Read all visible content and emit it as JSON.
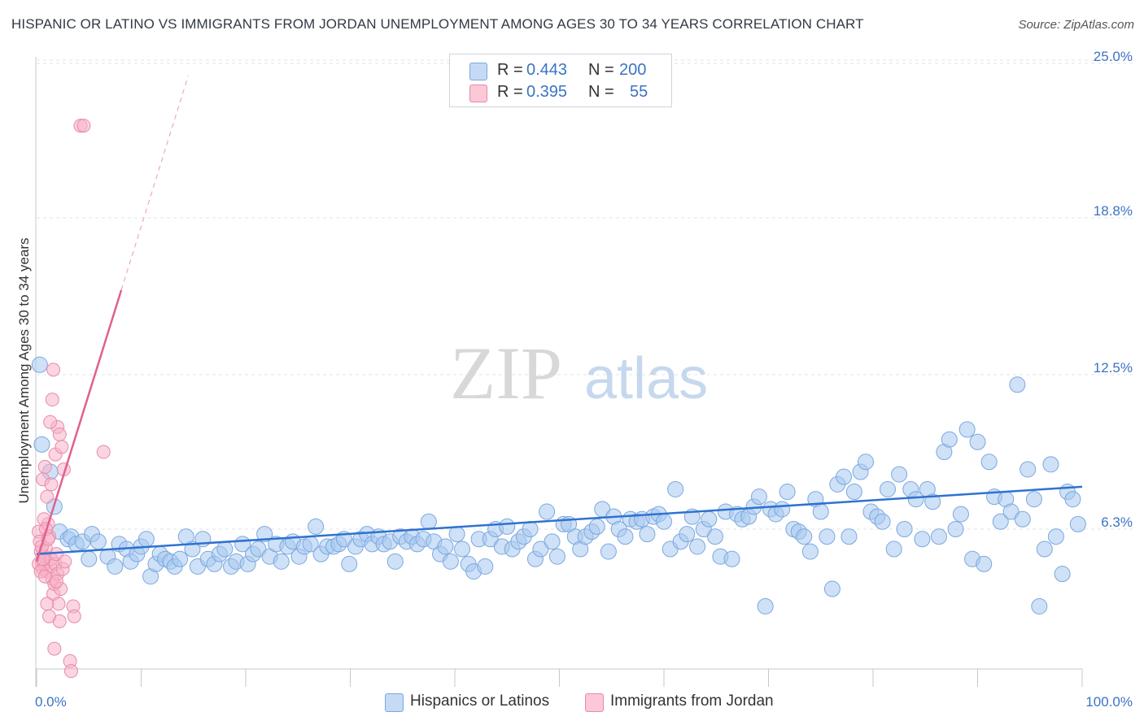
{
  "title": "HISPANIC OR LATINO VS IMMIGRANTS FROM JORDAN UNEMPLOYMENT AMONG AGES 30 TO 34 YEARS CORRELATION CHART",
  "source": "Source: ZipAtlas.com",
  "watermark": {
    "zip": "ZIP",
    "atlas": "atlas"
  },
  "legend_top": {
    "rows": [
      {
        "r_label": "R = ",
        "r_value": "0.443",
        "n_label": "N = ",
        "n_value": "200",
        "color": "#a8c8f0"
      },
      {
        "r_label": "R = ",
        "r_value": "0.395",
        "n_label": "N = ",
        "n_value": "55",
        "color": "#f7b3c8"
      }
    ]
  },
  "chart_data": {
    "type": "scatter",
    "title": "HISPANIC OR LATINO VS IMMIGRANTS FROM JORDAN UNEMPLOYMENT AMONG AGES 30 TO 34 YEARS CORRELATION CHART",
    "xlabel": "",
    "ylabel": "Unemployment Among Ages 30 to 34 years",
    "xlim": [
      0,
      100
    ],
    "ylim": [
      0,
      25.6
    ],
    "x_tick_labels": [
      "0.0%",
      "100.0%"
    ],
    "y_ticks": [
      6.3,
      12.5,
      18.8,
      25.0
    ],
    "y_tick_labels": [
      "6.3%",
      "12.5%",
      "18.8%",
      "25.0%"
    ],
    "grid": "dashed horizontal",
    "series": [
      {
        "name": "Hispanics or Latinos",
        "color": "#a8c8f0",
        "stroke": "#7aa8de",
        "line_color": "#2f72d0",
        "trend": {
          "x0": 0,
          "y0": 5.3,
          "x1": 100,
          "y1": 8.0
        },
        "points": [
          [
            0.3,
            12.9
          ],
          [
            0.5,
            9.7
          ],
          [
            1.3,
            8.6
          ],
          [
            1.7,
            7.2
          ],
          [
            2.2,
            6.2
          ],
          [
            3.0,
            5.9
          ],
          [
            3.3,
            6.0
          ],
          [
            3.8,
            5.7
          ],
          [
            4.4,
            5.8
          ],
          [
            5.0,
            5.1
          ],
          [
            5.3,
            6.1
          ],
          [
            5.9,
            5.8
          ],
          [
            6.8,
            5.2
          ],
          [
            7.5,
            4.8
          ],
          [
            7.9,
            5.7
          ],
          [
            8.6,
            5.5
          ],
          [
            9.0,
            5.0
          ],
          [
            9.6,
            5.3
          ],
          [
            10.0,
            5.6
          ],
          [
            10.5,
            5.9
          ],
          [
            10.9,
            4.4
          ],
          [
            11.4,
            4.9
          ],
          [
            11.8,
            5.3
          ],
          [
            12.3,
            5.1
          ],
          [
            12.8,
            5.0
          ],
          [
            13.2,
            4.8
          ],
          [
            13.7,
            5.1
          ],
          [
            14.3,
            6.0
          ],
          [
            14.9,
            5.5
          ],
          [
            15.4,
            4.8
          ],
          [
            15.9,
            5.9
          ],
          [
            16.4,
            5.1
          ],
          [
            17.0,
            4.9
          ],
          [
            17.5,
            5.3
          ],
          [
            18.0,
            5.5
          ],
          [
            18.6,
            4.8
          ],
          [
            19.1,
            5.0
          ],
          [
            19.7,
            5.7
          ],
          [
            20.2,
            4.9
          ],
          [
            20.7,
            5.3
          ],
          [
            21.2,
            5.5
          ],
          [
            21.8,
            6.1
          ],
          [
            22.3,
            5.2
          ],
          [
            22.9,
            5.7
          ],
          [
            23.4,
            5.0
          ],
          [
            24.0,
            5.6
          ],
          [
            24.5,
            5.8
          ],
          [
            25.1,
            5.2
          ],
          [
            25.6,
            5.6
          ],
          [
            26.2,
            5.7
          ],
          [
            26.7,
            6.4
          ],
          [
            27.2,
            5.3
          ],
          [
            27.8,
            5.6
          ],
          [
            28.4,
            5.6
          ],
          [
            28.9,
            5.7
          ],
          [
            29.4,
            5.9
          ],
          [
            29.9,
            4.9
          ],
          [
            30.5,
            5.6
          ],
          [
            31.0,
            5.9
          ],
          [
            31.6,
            6.1
          ],
          [
            32.1,
            5.7
          ],
          [
            32.7,
            6.0
          ],
          [
            33.2,
            5.7
          ],
          [
            33.8,
            5.8
          ],
          [
            34.3,
            5.0
          ],
          [
            34.8,
            6.0
          ],
          [
            35.4,
            5.8
          ],
          [
            35.9,
            6.0
          ],
          [
            36.4,
            5.7
          ],
          [
            37.0,
            5.9
          ],
          [
            37.5,
            6.6
          ],
          [
            38.0,
            5.8
          ],
          [
            38.6,
            5.3
          ],
          [
            39.1,
            5.6
          ],
          [
            39.6,
            5.0
          ],
          [
            40.2,
            6.1
          ],
          [
            40.7,
            5.5
          ],
          [
            41.3,
            4.9
          ],
          [
            41.8,
            4.6
          ],
          [
            42.3,
            5.9
          ],
          [
            42.9,
            4.8
          ],
          [
            43.4,
            5.9
          ],
          [
            43.9,
            6.3
          ],
          [
            44.5,
            5.6
          ],
          [
            45.0,
            6.4
          ],
          [
            45.5,
            5.5
          ],
          [
            46.1,
            5.8
          ],
          [
            46.6,
            6.0
          ],
          [
            47.2,
            6.3
          ],
          [
            47.7,
            5.1
          ],
          [
            48.2,
            5.5
          ],
          [
            48.8,
            7.0
          ],
          [
            49.3,
            5.8
          ],
          [
            49.8,
            5.2
          ],
          [
            50.4,
            6.5
          ],
          [
            50.9,
            6.5
          ],
          [
            51.5,
            6.0
          ],
          [
            52.0,
            5.5
          ],
          [
            52.5,
            6.0
          ],
          [
            53.1,
            6.2
          ],
          [
            53.6,
            6.4
          ],
          [
            54.1,
            7.1
          ],
          [
            54.7,
            5.4
          ],
          [
            55.2,
            6.8
          ],
          [
            55.7,
            6.3
          ],
          [
            56.3,
            6.0
          ],
          [
            56.8,
            6.7
          ],
          [
            57.4,
            6.6
          ],
          [
            57.9,
            6.7
          ],
          [
            58.4,
            6.1
          ],
          [
            59.0,
            6.8
          ],
          [
            59.5,
            6.9
          ],
          [
            60.0,
            6.6
          ],
          [
            60.6,
            5.5
          ],
          [
            61.1,
            7.9
          ],
          [
            61.6,
            5.8
          ],
          [
            62.2,
            6.1
          ],
          [
            62.7,
            6.8
          ],
          [
            63.2,
            5.6
          ],
          [
            63.8,
            6.3
          ],
          [
            64.3,
            6.7
          ],
          [
            64.9,
            6.0
          ],
          [
            65.4,
            5.2
          ],
          [
            65.9,
            7.0
          ],
          [
            66.5,
            5.1
          ],
          [
            67.0,
            6.9
          ],
          [
            67.5,
            6.7
          ],
          [
            68.1,
            6.8
          ],
          [
            68.6,
            7.2
          ],
          [
            69.1,
            7.6
          ],
          [
            69.7,
            3.2
          ],
          [
            70.2,
            7.1
          ],
          [
            70.7,
            6.9
          ],
          [
            71.3,
            7.1
          ],
          [
            71.8,
            7.8
          ],
          [
            72.4,
            6.3
          ],
          [
            72.9,
            6.2
          ],
          [
            73.4,
            6.0
          ],
          [
            74.0,
            5.4
          ],
          [
            74.5,
            7.5
          ],
          [
            75.0,
            7.0
          ],
          [
            75.6,
            6.0
          ],
          [
            76.1,
            3.9
          ],
          [
            76.6,
            8.1
          ],
          [
            77.2,
            8.4
          ],
          [
            77.7,
            6.0
          ],
          [
            78.2,
            7.8
          ],
          [
            78.8,
            8.6
          ],
          [
            79.3,
            9.0
          ],
          [
            79.8,
            7.0
          ],
          [
            80.4,
            6.8
          ],
          [
            80.9,
            6.6
          ],
          [
            81.4,
            7.9
          ],
          [
            82.0,
            5.5
          ],
          [
            82.5,
            8.5
          ],
          [
            83.0,
            6.3
          ],
          [
            83.6,
            7.9
          ],
          [
            84.1,
            7.5
          ],
          [
            84.7,
            5.9
          ],
          [
            85.2,
            7.9
          ],
          [
            85.7,
            7.4
          ],
          [
            86.3,
            6.0
          ],
          [
            86.8,
            9.4
          ],
          [
            87.3,
            9.9
          ],
          [
            87.9,
            6.3
          ],
          [
            88.4,
            6.9
          ],
          [
            89.0,
            10.3
          ],
          [
            89.5,
            5.1
          ],
          [
            90.0,
            9.8
          ],
          [
            90.6,
            4.9
          ],
          [
            91.1,
            9.0
          ],
          [
            91.6,
            7.6
          ],
          [
            92.2,
            6.6
          ],
          [
            92.7,
            7.5
          ],
          [
            93.2,
            7.0
          ],
          [
            93.8,
            12.1
          ],
          [
            94.3,
            6.7
          ],
          [
            94.8,
            8.7
          ],
          [
            95.4,
            7.5
          ],
          [
            95.9,
            3.2
          ],
          [
            96.4,
            5.5
          ],
          [
            97.0,
            8.9
          ],
          [
            97.5,
            6.0
          ],
          [
            98.1,
            4.5
          ],
          [
            98.6,
            7.8
          ],
          [
            99.1,
            7.5
          ],
          [
            99.6,
            6.5
          ]
        ]
      },
      {
        "name": "Immigrants from Jordan",
        "color": "#f7b3c8",
        "stroke": "#e88aa8",
        "line_color": "#e0608f",
        "trend": {
          "x0": 0,
          "y0": 5.0,
          "x1": 8.1,
          "y1": 15.9
        },
        "trend_dashed": {
          "x0": 8.1,
          "y0": 15.9,
          "x1": 14.5,
          "y1": 24.5
        },
        "points": [
          [
            4.2,
            22.5
          ],
          [
            4.5,
            22.5
          ],
          [
            0.2,
            6.2
          ],
          [
            0.3,
            5.8
          ],
          [
            0.4,
            5.4
          ],
          [
            0.5,
            5.0
          ],
          [
            0.6,
            4.7
          ],
          [
            0.7,
            4.9
          ],
          [
            0.8,
            5.2
          ],
          [
            0.9,
            5.5
          ],
          [
            1.0,
            4.6
          ],
          [
            1.1,
            6.5
          ],
          [
            1.2,
            6.0
          ],
          [
            1.3,
            4.8
          ],
          [
            1.4,
            5.1
          ],
          [
            1.5,
            4.3
          ],
          [
            1.6,
            3.7
          ],
          [
            1.7,
            4.1
          ],
          [
            1.8,
            4.9
          ],
          [
            1.9,
            5.3
          ],
          [
            2.0,
            4.5
          ],
          [
            2.1,
            3.3
          ],
          [
            2.2,
            2.6
          ],
          [
            2.3,
            3.9
          ],
          [
            2.5,
            4.7
          ],
          [
            2.7,
            5.0
          ],
          [
            0.2,
            4.9
          ],
          [
            0.4,
            4.6
          ],
          [
            0.6,
            5.1
          ],
          [
            0.8,
            4.4
          ],
          [
            1.0,
            3.3
          ],
          [
            1.2,
            2.8
          ],
          [
            0.6,
            8.3
          ],
          [
            0.8,
            8.8
          ],
          [
            1.0,
            7.6
          ],
          [
            1.4,
            8.1
          ],
          [
            1.6,
            12.7
          ],
          [
            1.8,
            9.3
          ],
          [
            2.0,
            10.4
          ],
          [
            2.2,
            10.1
          ],
          [
            1.3,
            10.6
          ],
          [
            1.5,
            11.5
          ],
          [
            0.7,
            6.7
          ],
          [
            0.9,
            6.3
          ],
          [
            2.4,
            9.6
          ],
          [
            2.6,
            8.7
          ],
          [
            3.5,
            3.2
          ],
          [
            3.6,
            2.8
          ],
          [
            3.2,
            1.0
          ],
          [
            3.3,
            0.6
          ],
          [
            1.7,
            1.5
          ],
          [
            6.4,
            9.4
          ],
          [
            0.5,
            5.6
          ],
          [
            1.1,
            5.9
          ],
          [
            1.9,
            4.2
          ]
        ]
      }
    ]
  },
  "legend_bottom": [
    {
      "label": "Hispanics or Latinos",
      "color": "#a8c8f0"
    },
    {
      "label": "Immigrants from Jordan",
      "color": "#f7b3c8"
    }
  ]
}
